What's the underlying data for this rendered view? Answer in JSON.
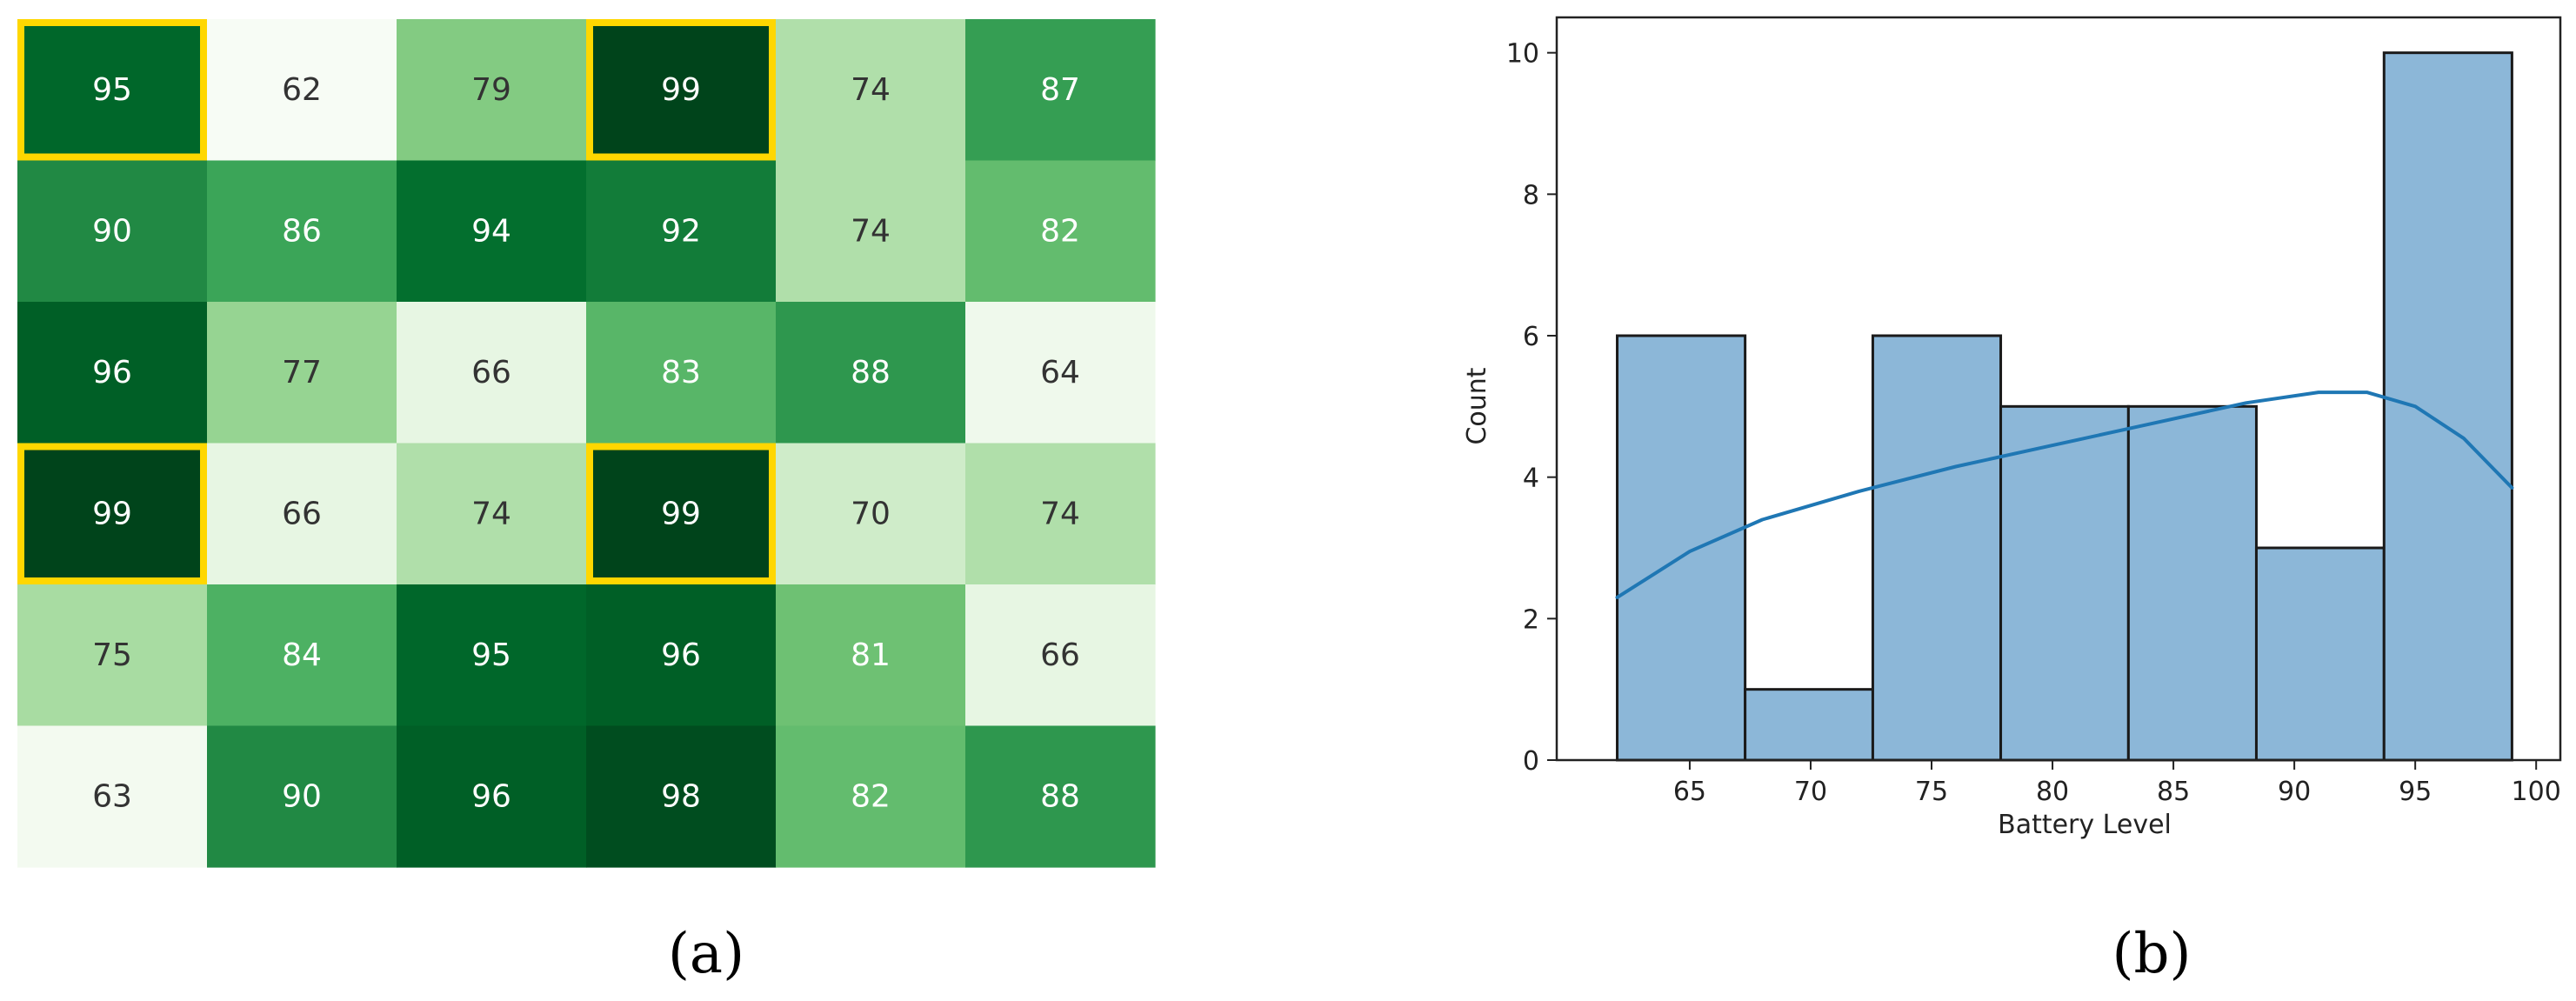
{
  "captions": {
    "a": "(a)",
    "b": "(b)"
  },
  "colors": {
    "highlight": "#ffd700",
    "bar_fill": "#8cb7d8",
    "bar_edge": "#1a1a1a",
    "kde_line": "#1f77b4",
    "text_dark": "#333333",
    "text_light": "#ffffff"
  },
  "chart_data": [
    {
      "type": "heatmap",
      "colormap": "Greens",
      "vmin": 62,
      "vmax": 99,
      "rows": 6,
      "cols": 6,
      "values": [
        [
          95,
          62,
          79,
          99,
          74,
          87
        ],
        [
          90,
          86,
          94,
          92,
          74,
          82
        ],
        [
          96,
          77,
          66,
          83,
          88,
          64
        ],
        [
          99,
          66,
          74,
          99,
          70,
          74
        ],
        [
          75,
          84,
          95,
          96,
          81,
          66
        ],
        [
          63,
          90,
          96,
          98,
          82,
          88
        ]
      ],
      "highlighted_cells": [
        [
          0,
          0
        ],
        [
          0,
          3
        ],
        [
          3,
          0
        ],
        [
          3,
          3
        ]
      ]
    },
    {
      "type": "bar",
      "subtype": "histogram_with_kde",
      "xlabel": "Battery Level",
      "ylabel": "Count",
      "xlim": [
        59.5,
        101
      ],
      "ylim": [
        0,
        10.5
      ],
      "xticks": [
        65,
        70,
        75,
        80,
        85,
        90,
        95,
        100
      ],
      "yticks": [
        0,
        2,
        4,
        6,
        8,
        10
      ],
      "bins": [
        {
          "from": 62,
          "to": 67.29,
          "count": 6
        },
        {
          "from": 67.29,
          "to": 72.57,
          "count": 1
        },
        {
          "from": 72.57,
          "to": 77.86,
          "count": 6
        },
        {
          "from": 77.86,
          "to": 83.14,
          "count": 5
        },
        {
          "from": 83.14,
          "to": 88.43,
          "count": 5
        },
        {
          "from": 88.43,
          "to": 93.71,
          "count": 3
        },
        {
          "from": 93.71,
          "to": 99,
          "count": 10
        }
      ],
      "kde": [
        [
          62,
          2.3
        ],
        [
          65,
          2.95
        ],
        [
          68,
          3.4
        ],
        [
          72,
          3.8
        ],
        [
          76,
          4.15
        ],
        [
          80,
          4.45
        ],
        [
          84,
          4.75
        ],
        [
          88,
          5.05
        ],
        [
          91,
          5.2
        ],
        [
          93,
          5.2
        ],
        [
          95,
          5.0
        ],
        [
          97,
          4.55
        ],
        [
          99,
          3.85
        ]
      ]
    }
  ]
}
